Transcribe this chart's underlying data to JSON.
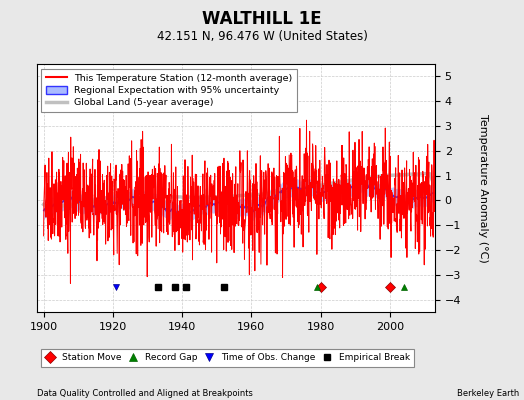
{
  "title": "WALTHILL 1E",
  "subtitle": "42.151 N, 96.476 W (United States)",
  "ylabel": "Temperature Anomaly (°C)",
  "xlabel_left": "Data Quality Controlled and Aligned at Breakpoints",
  "xlabel_right": "Berkeley Earth",
  "ylim": [
    -4.5,
    5.5
  ],
  "xlim": [
    1898,
    2013
  ],
  "yticks": [
    -4,
    -3,
    -2,
    -1,
    0,
    1,
    2,
    3,
    4,
    5
  ],
  "xticks": [
    1900,
    1920,
    1940,
    1960,
    1980,
    2000
  ],
  "background_color": "#e8e8e8",
  "plot_bg_color": "#ffffff",
  "station_color": "#ff0000",
  "regional_line_color": "#3333ff",
  "regional_fill_color": "#aabbff",
  "global_color": "#c0c0c0",
  "station_moves": [
    1980,
    2000
  ],
  "record_gaps": [
    1979,
    2004
  ],
  "tobs_changes": [
    1921
  ],
  "empirical_breaks": [
    1933,
    1938,
    1941,
    1952
  ],
  "marker_y": -3.5
}
